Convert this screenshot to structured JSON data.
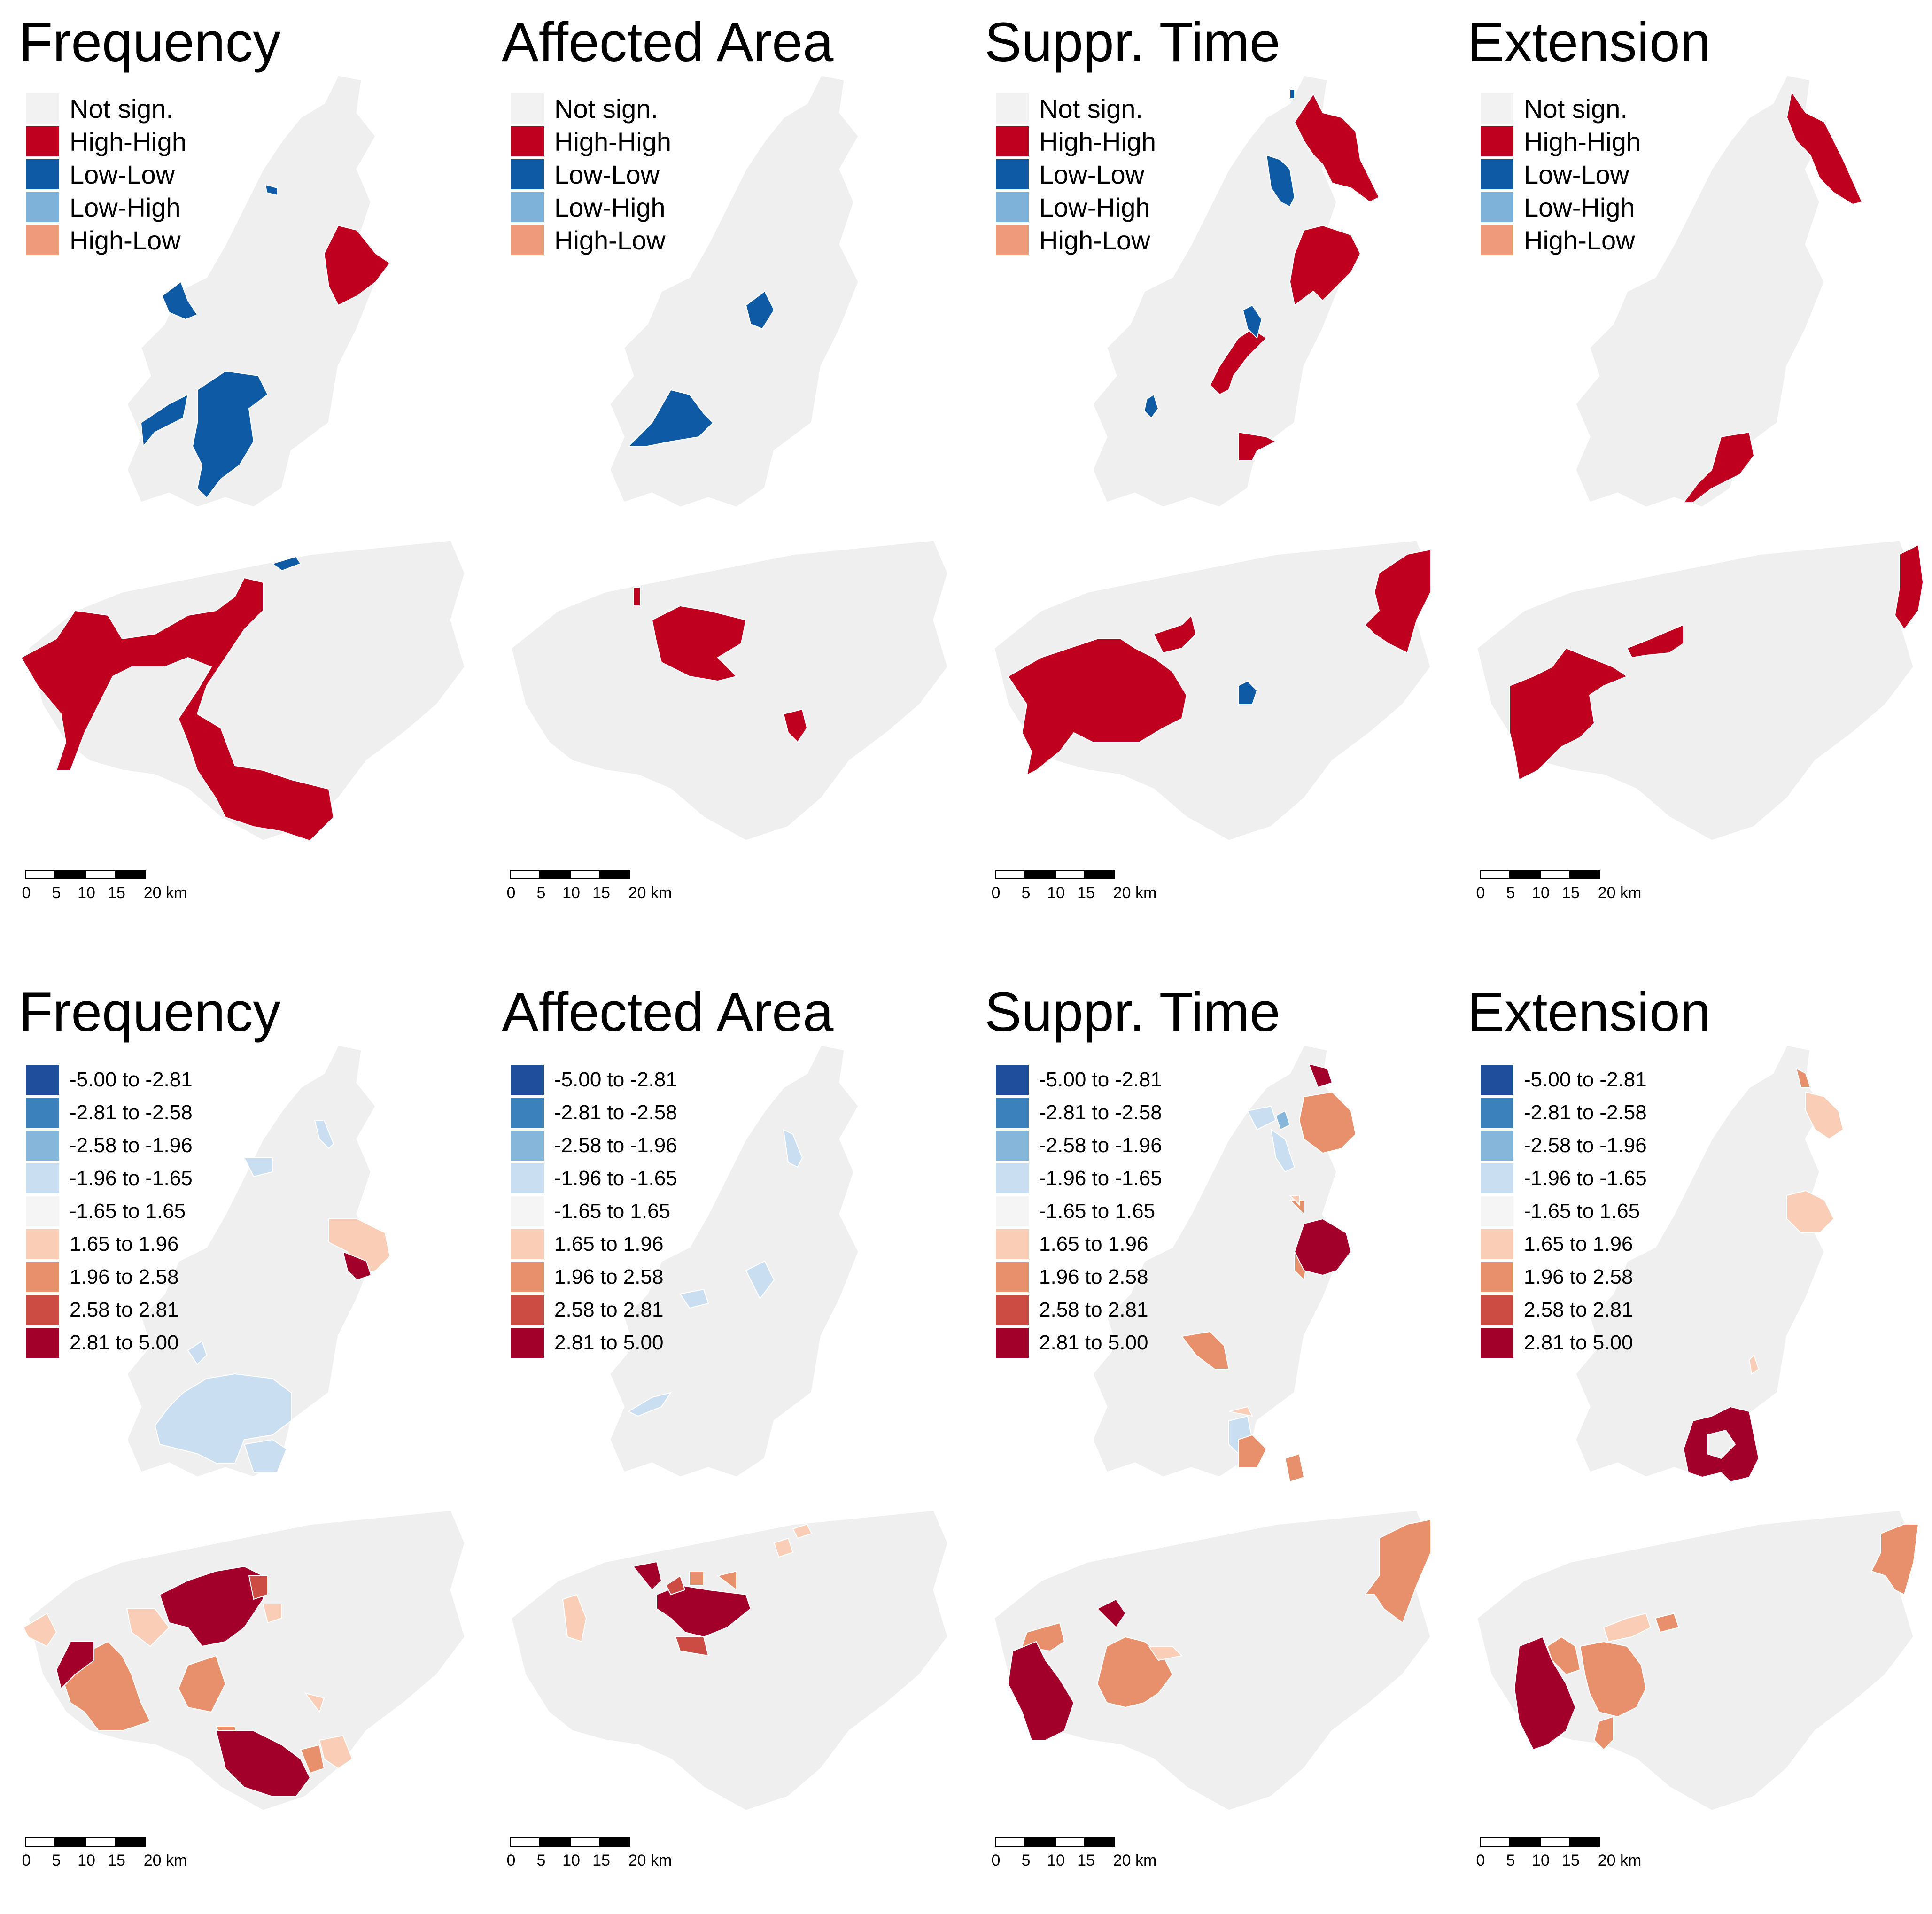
{
  "lisa_panels": [
    {
      "title": "Frequency"
    },
    {
      "title": "Affected Area"
    },
    {
      "title": "Suppr. Time"
    },
    {
      "title": "Extension"
    }
  ],
  "zscore_panels": [
    {
      "title": "Frequency"
    },
    {
      "title": "Affected Area"
    },
    {
      "title": "Suppr. Time"
    },
    {
      "title": "Extension"
    }
  ],
  "lisa_legend": [
    {
      "label": "Not sign.",
      "color": "#f2f2f2"
    },
    {
      "label": "High-High",
      "color": "#c0001f"
    },
    {
      "label": "Low-Low",
      "color": "#0f5aa4"
    },
    {
      "label": "Low-High",
      "color": "#7fb2d9"
    },
    {
      "label": "High-Low",
      "color": "#ef9a7a"
    }
  ],
  "zscore_legend": [
    {
      "label": "-5.00 to -2.81",
      "color": "#1e4e9c"
    },
    {
      "label": "-2.81 to -2.58",
      "color": "#3b82bd"
    },
    {
      "label": "-2.58 to -1.96",
      "color": "#86b7da"
    },
    {
      "label": "-1.96 to -1.65",
      "color": "#c9def0"
    },
    {
      "label": "-1.65 to 1.65",
      "color": "#f5f5f5"
    },
    {
      "label": "1.65 to 1.96",
      "color": "#f9cdb6"
    },
    {
      "label": "1.96 to 2.58",
      "color": "#e8906c"
    },
    {
      "label": "2.58 to 2.81",
      "color": "#cc4c44"
    },
    {
      "label": "2.81 to 5.00",
      "color": "#a2002a"
    }
  ],
  "scale_bar": {
    "ticks": [
      "0",
      "5",
      "10",
      "15",
      "20 km"
    ]
  },
  "colors": {
    "base_region": "#efefef",
    "border": "#ffffff"
  }
}
